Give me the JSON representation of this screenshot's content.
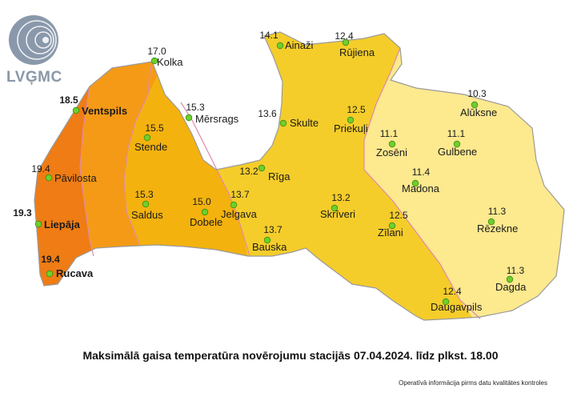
{
  "brand": {
    "name": "LVĢMC"
  },
  "map": {
    "title": "Maksimālā gaisa temperatūra novērojumu stacijās 07.04.2024. līdz plkst. 18.00",
    "note": "Operatīvā informācija pirms datu kvalitātes kontroles",
    "zone_colors": {
      "coastal": "#ef7c14",
      "west_inner": "#f59a16",
      "central_west": "#f4b20e",
      "central": "#f5cd2a",
      "east": "#fde98e",
      "border": "#9a9a9a",
      "isotherm": "#e08aa8"
    },
    "stations": [
      {
        "name": "Ainaži",
        "value": "14.1"
      },
      {
        "name": "Rūjiena",
        "value": "12.4"
      },
      {
        "name": "Kolka",
        "value": "17.0"
      },
      {
        "name": "Ventspils",
        "value": "18.5"
      },
      {
        "name": "Mērsrags",
        "value": "15.3"
      },
      {
        "name": "Stende",
        "value": "15.5"
      },
      {
        "name": "Skulte",
        "value": "13.6"
      },
      {
        "name": "Priekuļi",
        "value": "12.5"
      },
      {
        "name": "Alūksne",
        "value": "10.3"
      },
      {
        "name": "Zosēni",
        "value": "11.1"
      },
      {
        "name": "Gulbene",
        "value": "11.1"
      },
      {
        "name": "Pāvilosta",
        "value": "19.4"
      },
      {
        "name": "Rīga",
        "value": "13.2"
      },
      {
        "name": "Madona",
        "value": "11.4"
      },
      {
        "name": "Saldus",
        "value": "15.3"
      },
      {
        "name": "Dobele",
        "value": "15.0"
      },
      {
        "name": "Jelgava",
        "value": "13.7"
      },
      {
        "name": "Skrīveri",
        "value": "13.2"
      },
      {
        "name": "Liepāja",
        "value": "19.3"
      },
      {
        "name": "Zīlani",
        "value": "12.5"
      },
      {
        "name": "Rēzekne",
        "value": "11.3"
      },
      {
        "name": "Bauska",
        "value": "13.7"
      },
      {
        "name": "Rucava",
        "value": "19.4"
      },
      {
        "name": "Dagda",
        "value": "11.3"
      },
      {
        "name": "Daugavpils",
        "value": "12.4"
      }
    ]
  }
}
